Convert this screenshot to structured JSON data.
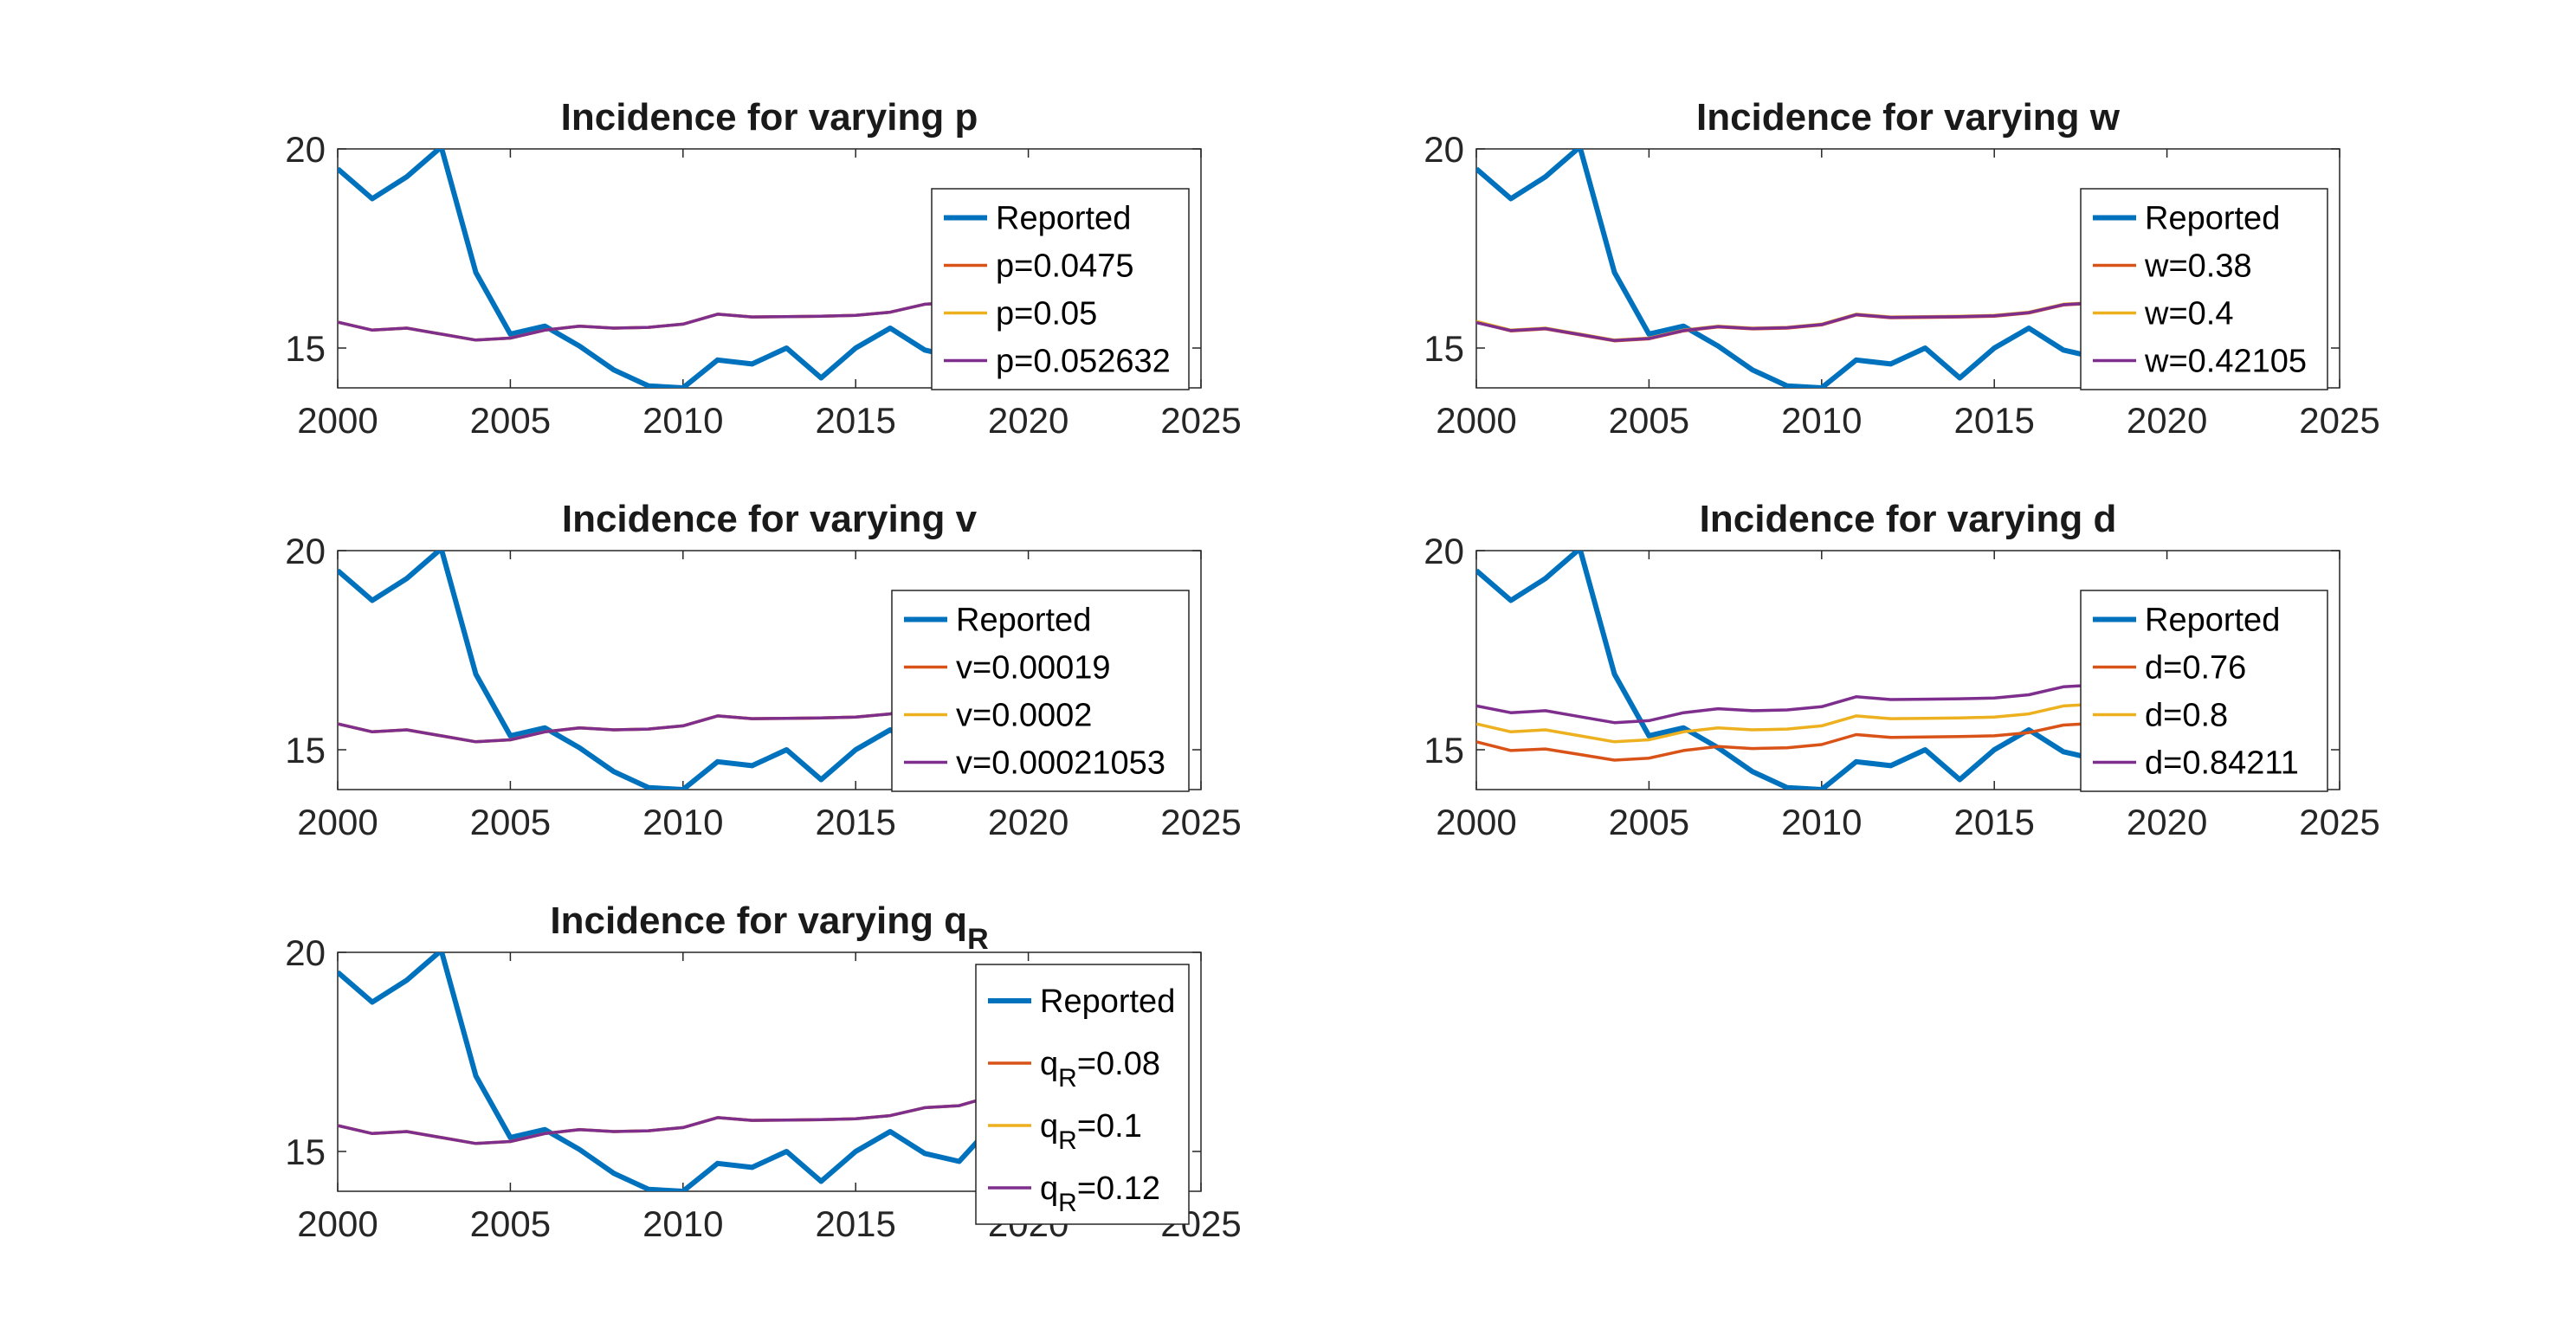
{
  "colors": {
    "reported": "#0072BD",
    "series1": "#D95319",
    "series2": "#EDB120",
    "series3": "#7E2F8E",
    "axis": "#262626",
    "legend_border": "#262626"
  },
  "chart_data": [
    {
      "type": "line",
      "title": "Incidence for varying p",
      "xlim": [
        2000,
        2025
      ],
      "ylim": [
        14,
        20
      ],
      "xticks": [
        "2000",
        "2005",
        "2010",
        "2015",
        "2020",
        "2025"
      ],
      "yticks": [
        "15",
        "20"
      ],
      "grid": false,
      "legend_position": "top-right",
      "series": [
        {
          "name": "Reported",
          "x": [
            2000,
            2001,
            2002,
            2003,
            2004,
            2005,
            2006,
            2007,
            2008,
            2009,
            2010,
            2011,
            2012,
            2013,
            2014,
            2015,
            2016,
            2017,
            2018,
            2019,
            2020
          ],
          "values": [
            19.5,
            18.75,
            19.3,
            20.05,
            16.9,
            15.35,
            15.55,
            15.05,
            14.45,
            14.05,
            14.0,
            14.7,
            14.6,
            15.0,
            14.25,
            15.0,
            15.5,
            14.95,
            14.75,
            15.7,
            14.35
          ]
        },
        {
          "name": "p=0.0475",
          "x": [
            2000,
            2001,
            2002,
            2003,
            2004,
            2005,
            2006,
            2007,
            2008,
            2009,
            2010,
            2011,
            2012,
            2013,
            2014,
            2015,
            2016,
            2017,
            2018,
            2019
          ],
          "values": [
            15.65,
            15.45,
            15.5,
            15.35,
            15.2,
            15.25,
            15.45,
            15.55,
            15.5,
            15.52,
            15.6,
            15.85,
            15.78,
            15.79,
            15.8,
            15.82,
            15.9,
            16.1,
            16.15,
            16.4
          ]
        },
        {
          "name": "p=0.05",
          "x": [
            2000,
            2001,
            2002,
            2003,
            2004,
            2005,
            2006,
            2007,
            2008,
            2009,
            2010,
            2011,
            2012,
            2013,
            2014,
            2015,
            2016,
            2017,
            2018,
            2019
          ],
          "values": [
            15.65,
            15.45,
            15.5,
            15.35,
            15.2,
            15.25,
            15.45,
            15.55,
            15.5,
            15.52,
            15.6,
            15.85,
            15.78,
            15.79,
            15.8,
            15.82,
            15.9,
            16.1,
            16.15,
            16.4
          ]
        },
        {
          "name": "p=0.052632",
          "x": [
            2000,
            2001,
            2002,
            2003,
            2004,
            2005,
            2006,
            2007,
            2008,
            2009,
            2010,
            2011,
            2012,
            2013,
            2014,
            2015,
            2016,
            2017,
            2018,
            2019
          ],
          "values": [
            15.65,
            15.45,
            15.5,
            15.35,
            15.2,
            15.25,
            15.45,
            15.55,
            15.5,
            15.52,
            15.6,
            15.85,
            15.78,
            15.79,
            15.8,
            15.82,
            15.9,
            16.1,
            16.15,
            16.4
          ]
        }
      ]
    },
    {
      "type": "line",
      "title": "Incidence for varying w",
      "xlim": [
        2000,
        2025
      ],
      "ylim": [
        14,
        20
      ],
      "xticks": [
        "2000",
        "2005",
        "2010",
        "2015",
        "2020",
        "2025"
      ],
      "yticks": [
        "15",
        "20"
      ],
      "grid": false,
      "legend_position": "top-right",
      "series": [
        {
          "name": "Reported",
          "x": [
            2000,
            2001,
            2002,
            2003,
            2004,
            2005,
            2006,
            2007,
            2008,
            2009,
            2010,
            2011,
            2012,
            2013,
            2014,
            2015,
            2016,
            2017,
            2018,
            2019,
            2020
          ],
          "values": [
            19.5,
            18.75,
            19.3,
            20.05,
            16.9,
            15.35,
            15.55,
            15.05,
            14.45,
            14.05,
            14.0,
            14.7,
            14.6,
            15.0,
            14.25,
            15.0,
            15.5,
            14.95,
            14.75,
            15.7,
            14.35
          ]
        },
        {
          "name": "w=0.38",
          "x": [
            2000,
            2001,
            2002,
            2003,
            2004,
            2005,
            2006,
            2007,
            2008,
            2009,
            2010,
            2011,
            2012,
            2013,
            2014,
            2015,
            2016,
            2017,
            2018,
            2019
          ],
          "values": [
            15.65,
            15.43,
            15.48,
            15.33,
            15.18,
            15.23,
            15.43,
            15.53,
            15.48,
            15.5,
            15.58,
            15.83,
            15.76,
            15.77,
            15.78,
            15.8,
            15.88,
            16.08,
            16.13,
            16.38
          ]
        },
        {
          "name": "w=0.4",
          "x": [
            2000,
            2001,
            2002,
            2003,
            2004,
            2005,
            2006,
            2007,
            2008,
            2009,
            2010,
            2011,
            2012,
            2013,
            2014,
            2015,
            2016,
            2017,
            2018,
            2019
          ],
          "values": [
            15.67,
            15.45,
            15.5,
            15.35,
            15.2,
            15.25,
            15.45,
            15.55,
            15.5,
            15.52,
            15.6,
            15.85,
            15.78,
            15.79,
            15.8,
            15.82,
            15.9,
            16.1,
            16.15,
            16.4
          ]
        },
        {
          "name": "w=0.42105",
          "x": [
            2000,
            2001,
            2002,
            2003,
            2004,
            2005,
            2006,
            2007,
            2008,
            2009,
            2010,
            2011,
            2012,
            2013,
            2014,
            2015,
            2016,
            2017,
            2018,
            2019
          ],
          "values": [
            15.64,
            15.44,
            15.49,
            15.34,
            15.19,
            15.24,
            15.44,
            15.54,
            15.49,
            15.51,
            15.59,
            15.84,
            15.77,
            15.78,
            15.79,
            15.81,
            15.89,
            16.09,
            16.14,
            16.39
          ]
        }
      ]
    },
    {
      "type": "line",
      "title": "Incidence for varying v",
      "xlim": [
        2000,
        2025
      ],
      "ylim": [
        14,
        20
      ],
      "xticks": [
        "2000",
        "2005",
        "2010",
        "2015",
        "2020",
        "2025"
      ],
      "yticks": [
        "15",
        "20"
      ],
      "grid": false,
      "legend_position": "top-right",
      "series": [
        {
          "name": "Reported",
          "x": [
            2000,
            2001,
            2002,
            2003,
            2004,
            2005,
            2006,
            2007,
            2008,
            2009,
            2010,
            2011,
            2012,
            2013,
            2014,
            2015,
            2016,
            2017,
            2018,
            2019,
            2020
          ],
          "values": [
            19.5,
            18.75,
            19.3,
            20.05,
            16.9,
            15.35,
            15.55,
            15.05,
            14.45,
            14.05,
            14.0,
            14.7,
            14.6,
            15.0,
            14.25,
            15.0,
            15.5,
            14.95,
            14.75,
            15.7,
            14.35
          ]
        },
        {
          "name": "v=0.00019",
          "x": [
            2000,
            2001,
            2002,
            2003,
            2004,
            2005,
            2006,
            2007,
            2008,
            2009,
            2010,
            2011,
            2012,
            2013,
            2014,
            2015,
            2016,
            2017,
            2018,
            2019
          ],
          "values": [
            15.65,
            15.45,
            15.5,
            15.35,
            15.2,
            15.25,
            15.45,
            15.55,
            15.5,
            15.52,
            15.6,
            15.85,
            15.78,
            15.79,
            15.8,
            15.82,
            15.9,
            16.1,
            16.15,
            16.4
          ]
        },
        {
          "name": "v=0.0002",
          "x": [
            2000,
            2001,
            2002,
            2003,
            2004,
            2005,
            2006,
            2007,
            2008,
            2009,
            2010,
            2011,
            2012,
            2013,
            2014,
            2015,
            2016,
            2017,
            2018,
            2019
          ],
          "values": [
            15.65,
            15.45,
            15.5,
            15.35,
            15.2,
            15.25,
            15.45,
            15.55,
            15.5,
            15.52,
            15.6,
            15.85,
            15.78,
            15.79,
            15.8,
            15.82,
            15.9,
            16.1,
            16.15,
            16.4
          ]
        },
        {
          "name": "v=0.00021053",
          "x": [
            2000,
            2001,
            2002,
            2003,
            2004,
            2005,
            2006,
            2007,
            2008,
            2009,
            2010,
            2011,
            2012,
            2013,
            2014,
            2015,
            2016,
            2017,
            2018,
            2019
          ],
          "values": [
            15.65,
            15.45,
            15.5,
            15.35,
            15.2,
            15.25,
            15.45,
            15.55,
            15.5,
            15.52,
            15.6,
            15.85,
            15.78,
            15.79,
            15.8,
            15.82,
            15.9,
            16.1,
            16.15,
            16.4
          ]
        }
      ]
    },
    {
      "type": "line",
      "title": "Incidence for varying d",
      "xlim": [
        2000,
        2025
      ],
      "ylim": [
        14,
        20
      ],
      "xticks": [
        "2000",
        "2005",
        "2010",
        "2015",
        "2020",
        "2025"
      ],
      "yticks": [
        "15",
        "20"
      ],
      "grid": false,
      "legend_position": "top-right",
      "series": [
        {
          "name": "Reported",
          "x": [
            2000,
            2001,
            2002,
            2003,
            2004,
            2005,
            2006,
            2007,
            2008,
            2009,
            2010,
            2011,
            2012,
            2013,
            2014,
            2015,
            2016,
            2017,
            2018,
            2019,
            2020
          ],
          "values": [
            19.5,
            18.75,
            19.3,
            20.05,
            16.9,
            15.35,
            15.55,
            15.05,
            14.45,
            14.05,
            14.0,
            14.7,
            14.6,
            15.0,
            14.25,
            15.0,
            15.5,
            14.95,
            14.75,
            15.7,
            14.35
          ]
        },
        {
          "name": "d=0.76",
          "x": [
            2000,
            2001,
            2002,
            2003,
            2004,
            2005,
            2006,
            2007,
            2008,
            2009,
            2010,
            2011,
            2012,
            2013,
            2014,
            2015,
            2016,
            2017,
            2018,
            2019
          ],
          "values": [
            15.2,
            14.98,
            15.02,
            14.88,
            14.74,
            14.79,
            14.98,
            15.08,
            15.03,
            15.05,
            15.13,
            15.38,
            15.31,
            15.32,
            15.33,
            15.35,
            15.43,
            15.62,
            15.67,
            15.92
          ]
        },
        {
          "name": "d=0.8",
          "x": [
            2000,
            2001,
            2002,
            2003,
            2004,
            2005,
            2006,
            2007,
            2008,
            2009,
            2010,
            2011,
            2012,
            2013,
            2014,
            2015,
            2016,
            2017,
            2018,
            2019
          ],
          "values": [
            15.65,
            15.45,
            15.5,
            15.35,
            15.2,
            15.25,
            15.45,
            15.55,
            15.5,
            15.52,
            15.6,
            15.85,
            15.78,
            15.79,
            15.8,
            15.82,
            15.9,
            16.1,
            16.15,
            16.4
          ]
        },
        {
          "name": "d=0.84211",
          "x": [
            2000,
            2001,
            2002,
            2003,
            2004,
            2005,
            2006,
            2007,
            2008,
            2009,
            2010,
            2011,
            2012,
            2013,
            2014,
            2015,
            2016,
            2017,
            2018,
            2019
          ],
          "values": [
            16.1,
            15.93,
            15.98,
            15.83,
            15.68,
            15.73,
            15.93,
            16.03,
            15.98,
            16.0,
            16.08,
            16.33,
            16.26,
            16.27,
            16.28,
            16.3,
            16.38,
            16.58,
            16.63,
            16.88
          ]
        }
      ]
    },
    {
      "type": "line",
      "title": "Incidence for varying q",
      "title_subscript": "R",
      "xlim": [
        2000,
        2025
      ],
      "ylim": [
        14,
        20
      ],
      "xticks": [
        "2000",
        "2005",
        "2010",
        "2015",
        "2020",
        "2025"
      ],
      "yticks": [
        "15",
        "20"
      ],
      "grid": false,
      "legend_position": "top-right",
      "series": [
        {
          "name": "Reported",
          "x": [
            2000,
            2001,
            2002,
            2003,
            2004,
            2005,
            2006,
            2007,
            2008,
            2009,
            2010,
            2011,
            2012,
            2013,
            2014,
            2015,
            2016,
            2017,
            2018,
            2019,
            2020
          ],
          "values": [
            19.5,
            18.75,
            19.3,
            20.05,
            16.9,
            15.35,
            15.55,
            15.05,
            14.45,
            14.05,
            14.0,
            14.7,
            14.6,
            15.0,
            14.25,
            15.0,
            15.5,
            14.95,
            14.75,
            15.7,
            14.35
          ]
        },
        {
          "name": "q",
          "name_subscript": "R",
          "name_suffix": "=0.08",
          "x": [
            2000,
            2001,
            2002,
            2003,
            2004,
            2005,
            2006,
            2007,
            2008,
            2009,
            2010,
            2011,
            2012,
            2013,
            2014,
            2015,
            2016,
            2017,
            2018,
            2019
          ],
          "values": [
            15.65,
            15.45,
            15.5,
            15.35,
            15.2,
            15.25,
            15.45,
            15.55,
            15.5,
            15.52,
            15.6,
            15.85,
            15.78,
            15.79,
            15.8,
            15.82,
            15.9,
            16.1,
            16.15,
            16.4
          ]
        },
        {
          "name": "q",
          "name_subscript": "R",
          "name_suffix": "=0.1",
          "x": [
            2000,
            2001,
            2002,
            2003,
            2004,
            2005,
            2006,
            2007,
            2008,
            2009,
            2010,
            2011,
            2012,
            2013,
            2014,
            2015,
            2016,
            2017,
            2018,
            2019
          ],
          "values": [
            15.65,
            15.45,
            15.5,
            15.35,
            15.2,
            15.25,
            15.45,
            15.55,
            15.5,
            15.52,
            15.6,
            15.85,
            15.78,
            15.79,
            15.8,
            15.82,
            15.9,
            16.1,
            16.15,
            16.4
          ]
        },
        {
          "name": "q",
          "name_subscript": "R",
          "name_suffix": "=0.12",
          "x": [
            2000,
            2001,
            2002,
            2003,
            2004,
            2005,
            2006,
            2007,
            2008,
            2009,
            2010,
            2011,
            2012,
            2013,
            2014,
            2015,
            2016,
            2017,
            2018,
            2019
          ],
          "values": [
            15.65,
            15.45,
            15.5,
            15.35,
            15.2,
            15.25,
            15.45,
            15.55,
            15.5,
            15.52,
            15.6,
            15.85,
            15.78,
            15.79,
            15.8,
            15.82,
            15.9,
            16.1,
            16.15,
            16.4
          ]
        }
      ]
    }
  ]
}
